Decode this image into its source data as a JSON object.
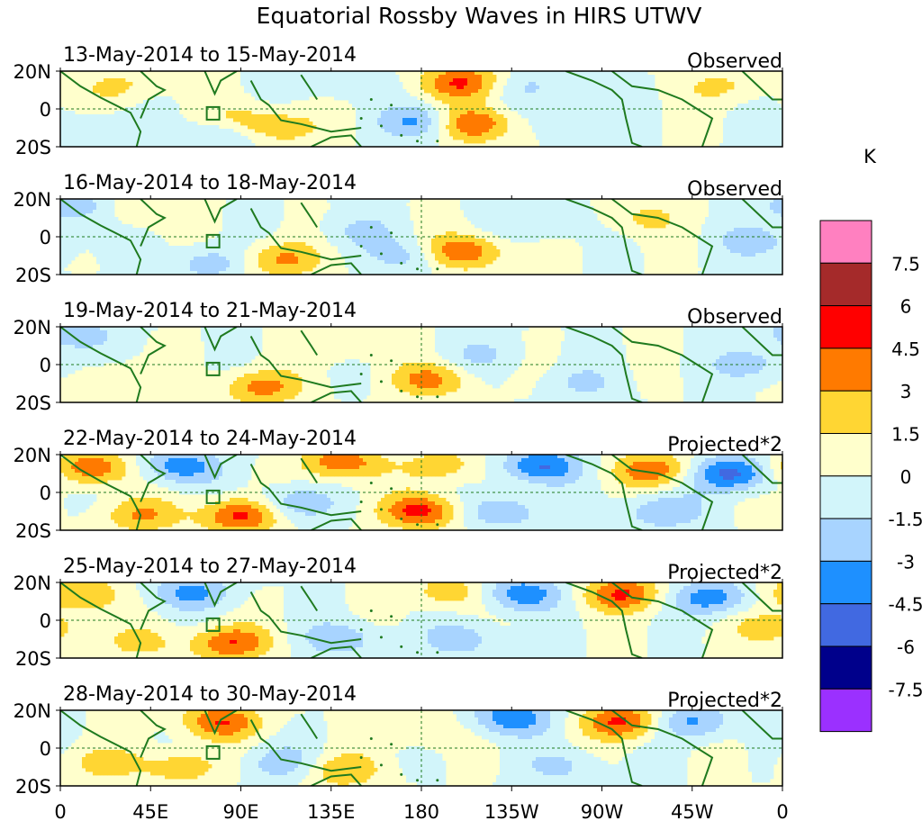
{
  "chart_data": {
    "type": "heatmap",
    "title": "Equatorial Rossby Waves in HIRS UTWV",
    "colorbar": {
      "unit": "K",
      "levels": [
        "7.5",
        "6",
        "4.5",
        "3",
        "1.5",
        "0",
        "-1.5",
        "-3",
        "-4.5",
        "-6",
        "-7.5"
      ],
      "colors": [
        "#ff80c0",
        "#a52a2a",
        "#ff0000",
        "#ff7a00",
        "#ffd633",
        "#ffffcc",
        "#d2f5fa",
        "#a8d4ff",
        "#1e90ff",
        "#4169e1",
        "#00008b",
        "#9b30ff"
      ]
    },
    "x_ticks": [
      "0",
      "45E",
      "90E",
      "135E",
      "180",
      "135W",
      "90W",
      "45W",
      "0"
    ],
    "x_values": [
      0,
      45,
      90,
      135,
      180,
      225,
      270,
      315,
      360
    ],
    "y_ticks": [
      "20N",
      "0",
      "20S"
    ],
    "y_values": [
      20,
      0,
      -20
    ],
    "panels": [
      {
        "dates": "13-May-2014 to 15-May-2014",
        "label": "Observed",
        "blobs": [
          {
            "lon": 200,
            "lat": 14,
            "v": 4.6
          },
          {
            "lon": 205,
            "lat": -8,
            "v": 4.8
          },
          {
            "lon": 180,
            "lat": -7,
            "v": -3.6
          },
          {
            "lon": 110,
            "lat": -10,
            "v": 2.4
          },
          {
            "lon": 90,
            "lat": -6,
            "v": 1.8
          },
          {
            "lon": 330,
            "lat": 12,
            "v": 1.8
          },
          {
            "lon": 30,
            "lat": 12,
            "v": 1.8
          },
          {
            "lon": 15,
            "lat": -12,
            "v": -1.8
          },
          {
            "lon": 80,
            "lat": -14,
            "v": -2.2
          },
          {
            "lon": 235,
            "lat": 12,
            "v": -1.6
          },
          {
            "lon": 260,
            "lat": -5,
            "v": -1.6
          },
          {
            "lon": 140,
            "lat": 15,
            "v": -1.6
          }
        ]
      },
      {
        "dates": "16-May-2014 to 18-May-2014",
        "label": "Observed",
        "blobs": [
          {
            "lon": 200,
            "lat": -8,
            "v": 4.7
          },
          {
            "lon": 110,
            "lat": -12,
            "v": 3.4
          },
          {
            "lon": 175,
            "lat": -10,
            "v": -2.4
          },
          {
            "lon": 8,
            "lat": 16,
            "v": -2.6
          },
          {
            "lon": 40,
            "lat": 15,
            "v": 1.8
          },
          {
            "lon": 75,
            "lat": -14,
            "v": -2.4
          },
          {
            "lon": 348,
            "lat": -3,
            "v": -2.2
          },
          {
            "lon": 290,
            "lat": 10,
            "v": 1.8
          },
          {
            "lon": 240,
            "lat": 8,
            "v": -1.6
          },
          {
            "lon": 150,
            "lat": 3,
            "v": -1.6
          }
        ]
      },
      {
        "dates": "19-May-2014 to 21-May-2014",
        "label": "Observed",
        "blobs": [
          {
            "lon": 100,
            "lat": -12,
            "v": 3.6
          },
          {
            "lon": 185,
            "lat": -8,
            "v": 3.4
          },
          {
            "lon": 145,
            "lat": 12,
            "v": 1.8
          },
          {
            "lon": 8,
            "lat": 16,
            "v": -2.4
          },
          {
            "lon": 345,
            "lat": 0,
            "v": -2.3
          },
          {
            "lon": 210,
            "lat": 5,
            "v": -1.6
          },
          {
            "lon": 260,
            "lat": -10,
            "v": -1.6
          },
          {
            "lon": 30,
            "lat": -8,
            "v": 1.8
          }
        ]
      },
      {
        "dates": "22-May-2014 to 24-May-2014",
        "label": "Projected*2",
        "blobs": [
          {
            "lon": 90,
            "lat": -12,
            "v": 5.2
          },
          {
            "lon": 180,
            "lat": -10,
            "v": 5.0
          },
          {
            "lon": 15,
            "lat": 13,
            "v": 4.4
          },
          {
            "lon": 140,
            "lat": 16,
            "v": 4.2
          },
          {
            "lon": 240,
            "lat": 14,
            "v": -4.6
          },
          {
            "lon": 335,
            "lat": 10,
            "v": -5.2
          },
          {
            "lon": 60,
            "lat": 14,
            "v": -4.0
          },
          {
            "lon": 115,
            "lat": -6,
            "v": -3.0
          },
          {
            "lon": 295,
            "lat": 12,
            "v": 4.0
          },
          {
            "lon": 220,
            "lat": -10,
            "v": -3.0
          },
          {
            "lon": 300,
            "lat": -10,
            "v": -3.0
          },
          {
            "lon": 190,
            "lat": 14,
            "v": 2.4
          },
          {
            "lon": 40,
            "lat": -12,
            "v": 3.0
          }
        ]
      },
      {
        "dates": "25-May-2014 to 27-May-2014",
        "label": "Projected*2",
        "blobs": [
          {
            "lon": 85,
            "lat": -12,
            "v": 4.4
          },
          {
            "lon": 280,
            "lat": 14,
            "v": 4.6
          },
          {
            "lon": 230,
            "lat": 14,
            "v": -4.2
          },
          {
            "lon": 325,
            "lat": 12,
            "v": -4.0
          },
          {
            "lon": 195,
            "lat": 15,
            "v": 2.6
          },
          {
            "lon": 65,
            "lat": 15,
            "v": -3.4
          },
          {
            "lon": 10,
            "lat": 14,
            "v": 3.2
          },
          {
            "lon": 140,
            "lat": -10,
            "v": -2.6
          },
          {
            "lon": 200,
            "lat": -10,
            "v": -2.4
          },
          {
            "lon": 355,
            "lat": -4,
            "v": 2.4
          },
          {
            "lon": 40,
            "lat": -12,
            "v": 1.8
          }
        ]
      },
      {
        "dates": "28-May-2014 to 30-May-2014",
        "label": "Projected*2",
        "blobs": [
          {
            "lon": 80,
            "lat": 14,
            "v": 4.4
          },
          {
            "lon": 280,
            "lat": 14,
            "v": 4.8
          },
          {
            "lon": 225,
            "lat": 16,
            "v": -4.2
          },
          {
            "lon": 315,
            "lat": 14,
            "v": -3.4
          },
          {
            "lon": 140,
            "lat": -12,
            "v": 2.8
          },
          {
            "lon": 60,
            "lat": -10,
            "v": 2.6
          },
          {
            "lon": 20,
            "lat": -8,
            "v": 2.0
          },
          {
            "lon": 180,
            "lat": 10,
            "v": 1.8
          },
          {
            "lon": 110,
            "lat": -8,
            "v": -2.4
          },
          {
            "lon": 250,
            "lat": -10,
            "v": -1.8
          }
        ]
      }
    ]
  }
}
